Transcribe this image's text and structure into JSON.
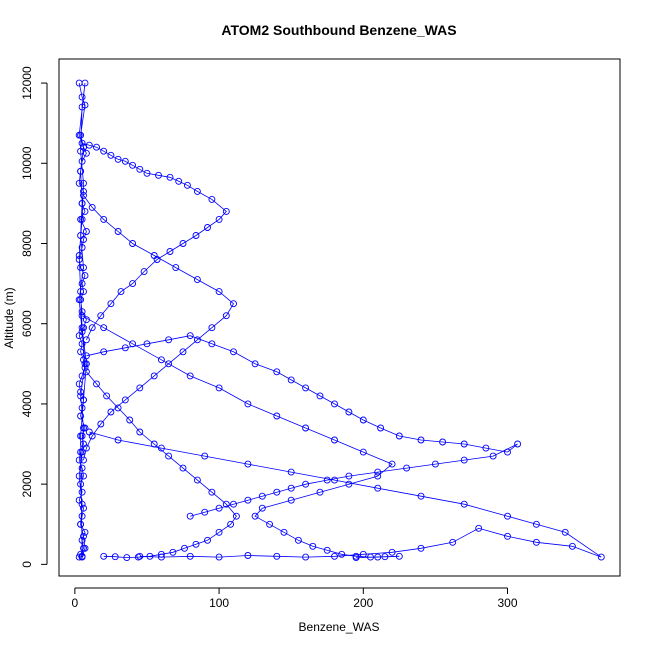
{
  "chart_data": {
    "type": "scatter",
    "title": "ATOM2 Southbound Benzene_WAS",
    "xlabel": "Benzene_WAS",
    "ylabel": "Altitude (m)",
    "xlim": [
      -11,
      378
    ],
    "ylim": [
      -290,
      12600
    ],
    "xticks": [
      0,
      100,
      200,
      300
    ],
    "yticks": [
      0,
      2000,
      4000,
      6000,
      8000,
      10000,
      12000
    ],
    "grid": false,
    "legend": "none",
    "colors": {
      "series": "#0000ff",
      "axis": "#000000",
      "background": "#ffffff"
    },
    "series": [
      {
        "marker": "open-circle",
        "connected": true,
        "x": [
          3,
          5,
          7,
          4,
          6,
          8,
          5,
          4,
          3,
          6,
          5,
          7,
          4,
          8,
          6,
          5,
          3,
          4,
          7,
          5,
          6,
          4,
          5,
          8,
          6,
          3,
          5,
          4,
          6,
          7,
          5,
          3,
          4,
          6,
          5,
          4,
          7,
          5,
          6,
          4,
          3,
          5,
          6,
          4,
          5,
          3,
          6,
          5,
          4,
          7,
          5,
          6,
          4,
          3,
          5,
          7,
          6,
          4,
          5,
          3,
          5,
          6,
          4,
          7,
          5,
          3,
          6,
          4,
          5,
          4,
          6,
          3,
          7,
          5,
          4,
          6,
          5,
          3,
          4,
          5,
          8,
          6,
          4,
          5
        ],
        "y": [
          12000,
          11650,
          11450,
          10700,
          10400,
          10250,
          10050,
          9800,
          9500,
          9300,
          9000,
          8800,
          8600,
          8300,
          8100,
          7900,
          7600,
          7400,
          7200,
          7000,
          6800,
          6600,
          6300,
          6100,
          5900,
          5700,
          5500,
          5300,
          5100,
          4900,
          4700,
          4500,
          4300,
          4100,
          3900,
          3700,
          3400,
          3200,
          3000,
          2800,
          2600,
          2400,
          2200,
          2000,
          1800,
          1600,
          1400,
          1200,
          1000,
          800,
          600,
          400,
          250,
          180,
          200,
          400,
          700,
          1000,
          1500,
          2200,
          2800,
          3400,
          4200,
          5000,
          5800,
          6600,
          7400,
          8200,
          9000,
          9800,
          10400,
          10700,
          12000,
          11400,
          10300,
          9500,
          8600,
          7700,
          6800,
          5900,
          5000,
          4100,
          3200,
          180
        ]
      },
      {
        "marker": "open-circle",
        "connected": true,
        "x": [
          5,
          10,
          15,
          20,
          25,
          30,
          35,
          40,
          45,
          50,
          58,
          66,
          72,
          78,
          85,
          95,
          105,
          100,
          92,
          84,
          75,
          66,
          57,
          48,
          40,
          32,
          25,
          18,
          12,
          8
        ],
        "y": [
          10500,
          10450,
          10400,
          10300,
          10200,
          10100,
          10050,
          9950,
          9850,
          9750,
          9700,
          9650,
          9550,
          9450,
          9300,
          9100,
          8800,
          8600,
          8400,
          8200,
          8000,
          7800,
          7600,
          7300,
          7000,
          6800,
          6500,
          6200,
          5900,
          5600
        ]
      },
      {
        "marker": "open-circle",
        "connected": true,
        "x": [
          8,
          20,
          35,
          50,
          65,
          80,
          95,
          110,
          125,
          140,
          150,
          160,
          170,
          180,
          190,
          200,
          212,
          225,
          240,
          255,
          270,
          285,
          300,
          307,
          290,
          270,
          250,
          230,
          210,
          190,
          175,
          160,
          150,
          140,
          130,
          120,
          110,
          100,
          90,
          80
        ],
        "y": [
          5200,
          5300,
          5400,
          5500,
          5600,
          5700,
          5500,
          5300,
          5000,
          4800,
          4600,
          4400,
          4200,
          4000,
          3800,
          3600,
          3400,
          3200,
          3100,
          3050,
          3000,
          2900,
          2800,
          3000,
          2700,
          2600,
          2500,
          2400,
          2300,
          2200,
          2100,
          2000,
          1900,
          1800,
          1700,
          1600,
          1500,
          1400,
          1300,
          1200
        ]
      },
      {
        "marker": "open-circle",
        "connected": true,
        "x": [
          10,
          30,
          60,
          90,
          120,
          150,
          180,
          210,
          240,
          270,
          300,
          320,
          340,
          365,
          345,
          320,
          300,
          280,
          262,
          240,
          220,
          200,
          180,
          160,
          140,
          120,
          100,
          80,
          60,
          45
        ],
        "y": [
          3300,
          3100,
          2900,
          2700,
          2500,
          2300,
          2100,
          1900,
          1700,
          1500,
          1200,
          1000,
          800,
          180,
          450,
          550,
          700,
          900,
          550,
          400,
          300,
          250,
          200,
          180,
          200,
          220,
          180,
          200,
          180,
          200
        ]
      },
      {
        "marker": "open-circle",
        "connected": true,
        "x": [
          5,
          20,
          40,
          60,
          80,
          100,
          120,
          140,
          160,
          180,
          200,
          220,
          210,
          190,
          170,
          150,
          130,
          125,
          135,
          145,
          155,
          165,
          175,
          185,
          195,
          205,
          215,
          225,
          210,
          195
        ],
        "y": [
          6200,
          5900,
          5500,
          5100,
          4700,
          4400,
          4000,
          3700,
          3400,
          3100,
          2800,
          2500,
          2200,
          2000,
          1800,
          1600,
          1400,
          1200,
          1000,
          800,
          600,
          450,
          350,
          250,
          200,
          180,
          190,
          200,
          180,
          170
        ]
      },
      {
        "marker": "open-circle",
        "connected": true,
        "x": [
          6,
          12,
          20,
          30,
          40,
          55,
          70,
          85,
          100,
          110,
          105,
          95,
          85,
          75,
          65,
          55,
          45,
          35,
          25,
          18,
          12,
          8,
          6
        ],
        "y": [
          9200,
          8900,
          8600,
          8300,
          8000,
          7700,
          7400,
          7100,
          6800,
          6500,
          6200,
          5900,
          5600,
          5300,
          5000,
          4700,
          4400,
          4100,
          3800,
          3500,
          3200,
          2900,
          2600
        ]
      },
      {
        "marker": "open-circle",
        "connected": true,
        "x": [
          8,
          15,
          22,
          30,
          38,
          45,
          55,
          65,
          75,
          85,
          95,
          105,
          112,
          108,
          100,
          92,
          84,
          76,
          68,
          60,
          52,
          44,
          36,
          28,
          20
        ],
        "y": [
          4800,
          4500,
          4200,
          3900,
          3600,
          3300,
          3000,
          2700,
          2400,
          2100,
          1800,
          1500,
          1200,
          1000,
          800,
          600,
          500,
          400,
          300,
          250,
          200,
          180,
          170,
          190,
          200
        ]
      }
    ]
  }
}
